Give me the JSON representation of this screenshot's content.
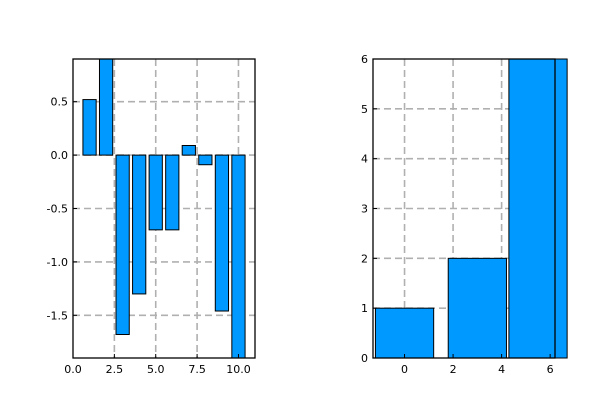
{
  "chart_data": [
    {
      "type": "bar",
      "title": "",
      "xlabel": "",
      "ylabel": "",
      "x": [
        1,
        2,
        3,
        4,
        5,
        6,
        7,
        8,
        9,
        10
      ],
      "values": [
        0.52,
        0.9,
        -1.68,
        -1.3,
        -0.7,
        -0.7,
        0.09,
        -0.09,
        -1.46,
        -1.9
      ],
      "bar_width": 0.8,
      "xlim": [
        0.0,
        11.0
      ],
      "ylim": [
        -1.9,
        0.9
      ],
      "xticks": [
        0.0,
        2.5,
        5.0,
        7.5,
        10.0
      ],
      "xtick_labels": [
        "0.0",
        "2.5",
        "5.0",
        "7.5",
        "10.0"
      ],
      "yticks": [
        0.5,
        0.0,
        -0.5,
        -1.0,
        -1.5
      ],
      "ytick_labels": [
        "0.5",
        "0.0",
        "-0.5",
        "-1.0",
        "-1.5"
      ],
      "grid": true,
      "bar_color": "#0099ff"
    },
    {
      "type": "bar",
      "title": "",
      "xlabel": "",
      "ylabel": "",
      "x": [
        0,
        3,
        5.5
      ],
      "values": [
        1,
        2,
        6
      ],
      "bar_width": 2.4,
      "xlim": [
        -1.3,
        6.2
      ],
      "ylim": [
        0,
        6
      ],
      "xticks": [
        0,
        2,
        4,
        6
      ],
      "xtick_labels": [
        "0",
        "2",
        "4",
        "6"
      ],
      "yticks": [
        0,
        1,
        2,
        3,
        4,
        5,
        6
      ],
      "ytick_labels": [
        "0",
        "1",
        "2",
        "3",
        "4",
        "5",
        "6"
      ],
      "grid": true,
      "bar_color": "#0099ff"
    }
  ]
}
